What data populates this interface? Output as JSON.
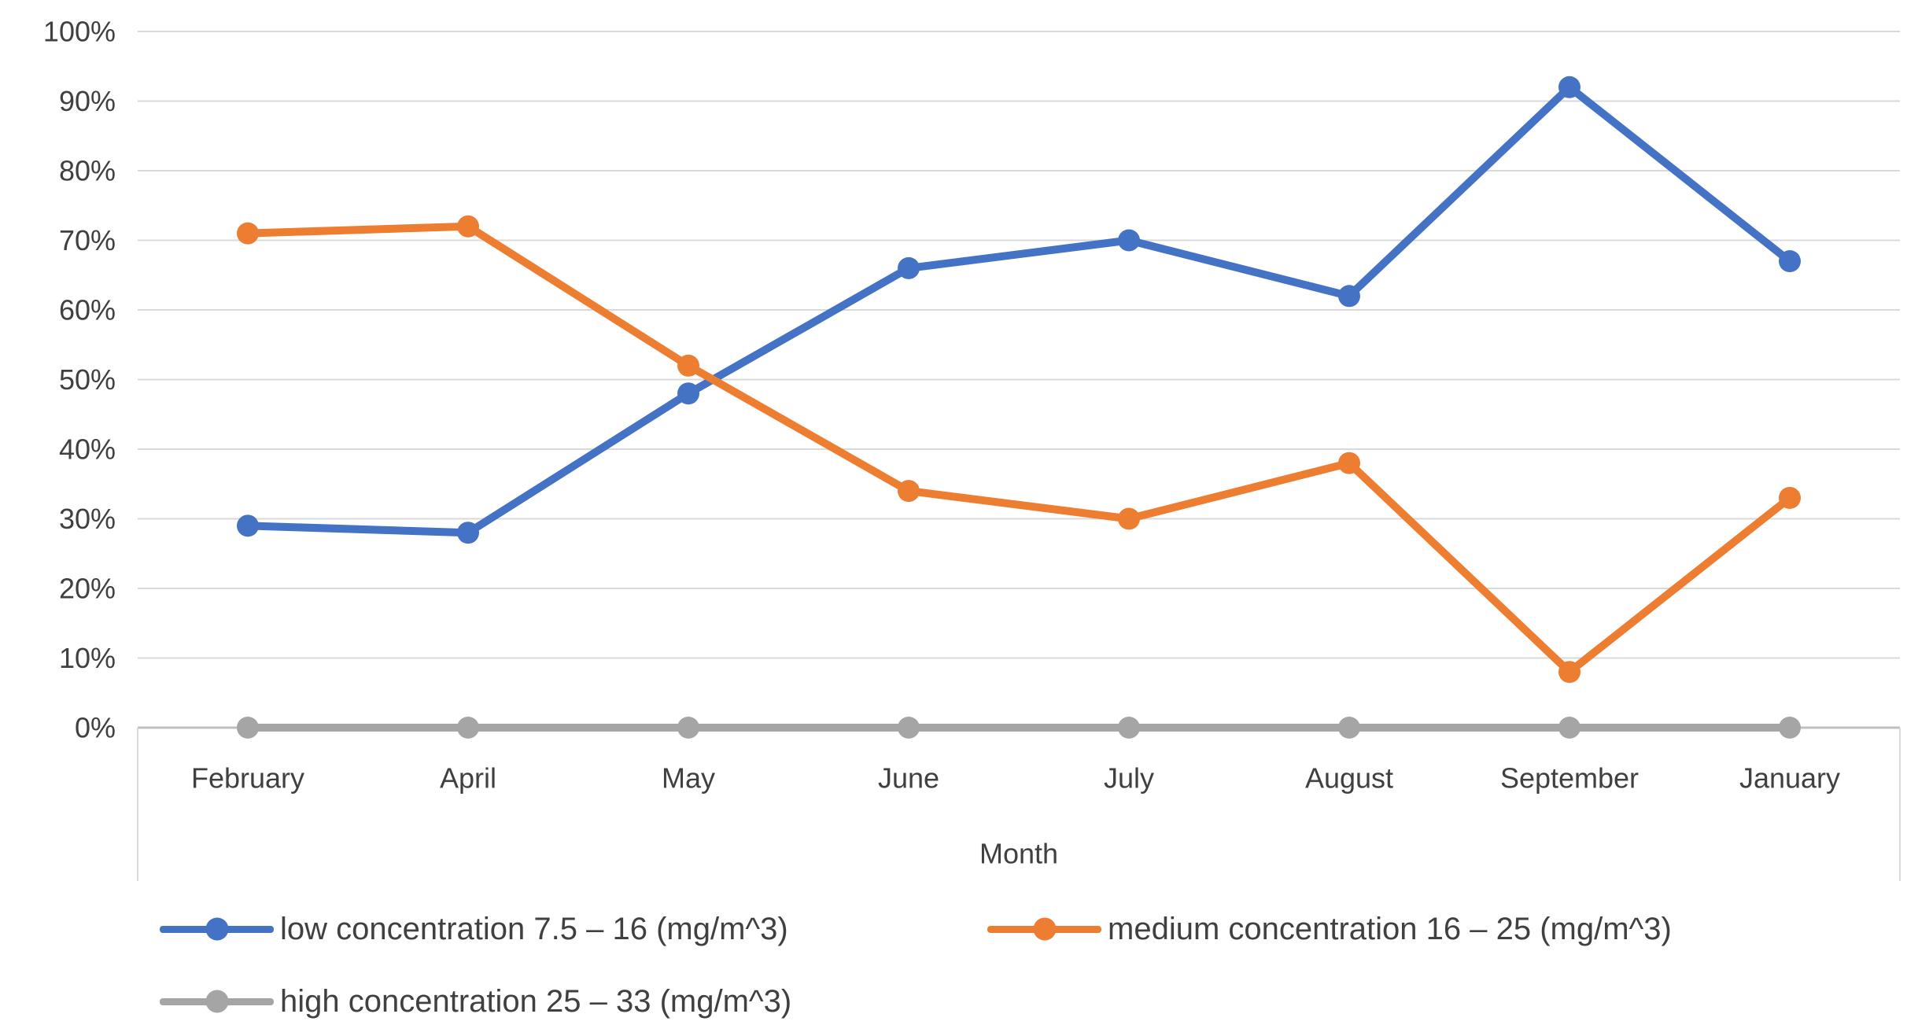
{
  "chart_data": {
    "type": "line",
    "title": "",
    "xlabel": "Month",
    "ylabel": "",
    "categories": [
      "February",
      "April",
      "May",
      "June",
      "July",
      "August",
      "September",
      "January"
    ],
    "series": [
      {
        "name": "low concentration 7.5 – 16 (mg/m^3)",
        "color": "#4472C4",
        "values": [
          29,
          28,
          48,
          66,
          70,
          62,
          92,
          67
        ]
      },
      {
        "name": "medium concentration 16 – 25 (mg/m^3)",
        "color": "#ED7D31",
        "values": [
          71,
          72,
          52,
          34,
          30,
          38,
          8,
          33
        ]
      },
      {
        "name": "high concentration 25 – 33 (mg/m^3)",
        "color": "#A5A5A5",
        "values": [
          0,
          0,
          0,
          0,
          0,
          0,
          0,
          0
        ]
      }
    ],
    "y_ticks": [
      {
        "value": 0,
        "label": "0%"
      },
      {
        "value": 10,
        "label": "10%"
      },
      {
        "value": 20,
        "label": "20%"
      },
      {
        "value": 30,
        "label": "30%"
      },
      {
        "value": 40,
        "label": "40%"
      },
      {
        "value": 50,
        "label": "50%"
      },
      {
        "value": 60,
        "label": "60%"
      },
      {
        "value": 70,
        "label": "70%"
      },
      {
        "value": 80,
        "label": "80%"
      },
      {
        "value": 90,
        "label": "90%"
      },
      {
        "value": 100,
        "label": "100%"
      }
    ],
    "ylim": [
      0,
      100
    ],
    "grid": true,
    "legend_position": "bottom-left"
  },
  "style": {
    "grid_color": "#D9D9D9",
    "axis_color": "#BFBFBF",
    "frame_color": "#D9D9D9",
    "text_color": "#404040"
  }
}
